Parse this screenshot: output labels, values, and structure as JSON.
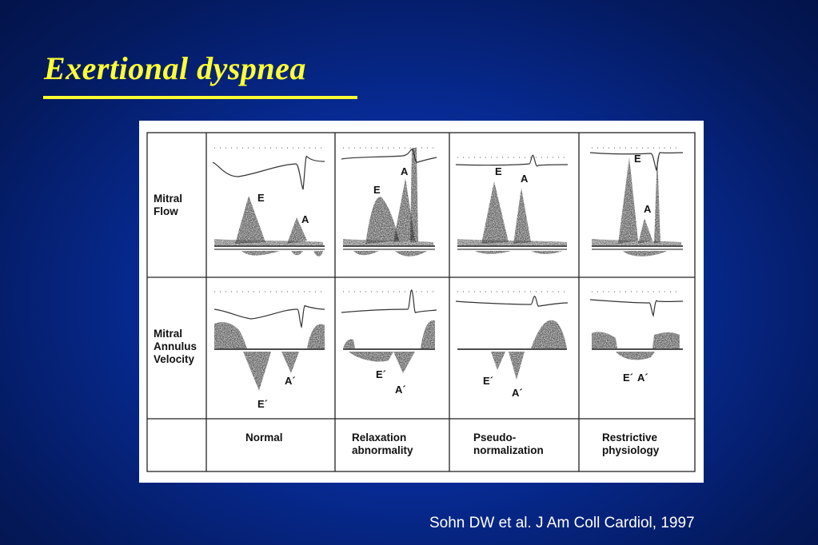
{
  "slide": {
    "title": "Exertional dyspnea",
    "citation": "Sohn DW et al. J Am Coll Cardiol, 1997",
    "colors": {
      "title": "#ffff33",
      "background": "#072a92"
    }
  },
  "figure": {
    "row_labels": [
      "Mitral\nFlow",
      "Mitral\nAnnulus\nVelocity"
    ],
    "column_labels": [
      "Normal",
      "Relaxation\nabnormality",
      "Pseudo-\nnormalization",
      "Restrictive\nphysiology"
    ],
    "flow_wave_labels": [
      {
        "e": "E",
        "a": "A"
      },
      {
        "e": "E",
        "a": "A"
      },
      {
        "e": "E",
        "a": "A"
      },
      {
        "e": "E",
        "a": "A"
      }
    ],
    "annulus_wave_labels": [
      {
        "e": "E´",
        "a": "A´"
      },
      {
        "e": "E´",
        "a": "A´"
      },
      {
        "e": "E´",
        "a": "A´"
      },
      {
        "e": "E´",
        "a": "A´"
      }
    ]
  }
}
